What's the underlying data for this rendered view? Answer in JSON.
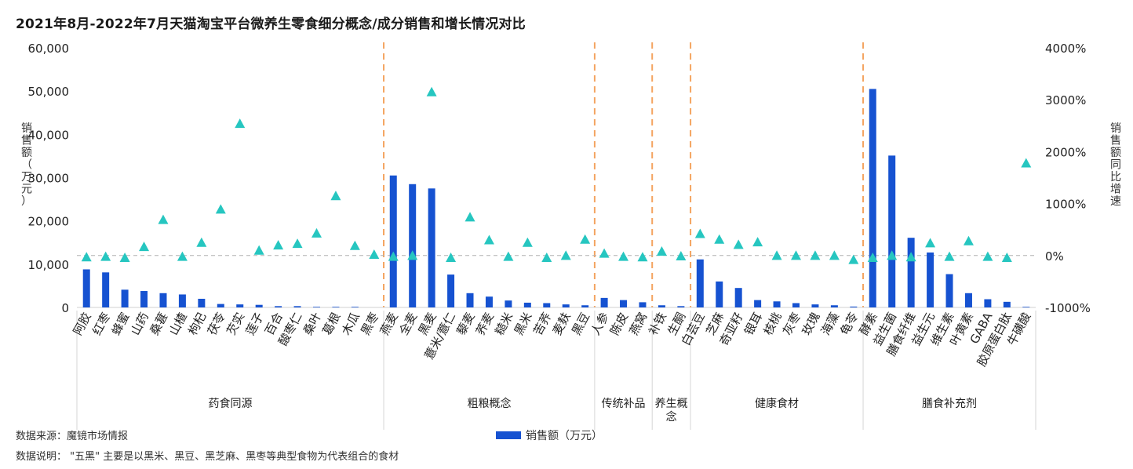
{
  "chart_data": {
    "type": "bar",
    "title": "2021年8月-2022年7月天猫淘宝平台微养生零食细分概念/成分销售和增长情况对比",
    "ylabel": "销售额（万元）",
    "y2label": "销售额同比增速",
    "ylim": [
      0,
      60000
    ],
    "yticks": [
      "0",
      "10,000",
      "20,000",
      "30,000",
      "40,000",
      "50,000",
      "60,000"
    ],
    "y2lim": [
      -1000,
      4000
    ],
    "y2ticks": [
      "-1000%",
      "0%",
      "1000%",
      "2000%",
      "3000%",
      "4000%"
    ],
    "categories": [
      "阿胶",
      "红枣",
      "蜂蜜",
      "山药",
      "桑葚",
      "山楂",
      "枸杞",
      "茯苓",
      "芡实",
      "莲子",
      "百合",
      "酸枣仁",
      "桑叶",
      "葛根",
      "木瓜",
      "黑枣",
      "燕麦",
      "全麦",
      "黑麦",
      "薏米/薏仁",
      "藜麦",
      "荞麦",
      "糙米",
      "黑米",
      "苦荞",
      "麦麸",
      "黑豆",
      "人参",
      "陈皮",
      "燕窝",
      "补铁",
      "生酮",
      "白芸豆",
      "芝麻",
      "奇亚籽",
      "银耳",
      "核桃",
      "灰枣",
      "玫瑰",
      "海藻",
      "龟苓",
      "酵素",
      "益生菌",
      "膳食纤维",
      "益生元",
      "维生素",
      "叶黄素",
      "GABA",
      "胶原蛋白肽",
      "牛磺酸"
    ],
    "series": [
      {
        "name": "销售额（万元）",
        "type": "bar",
        "color": "#1652d1",
        "values": [
          8800,
          8100,
          4100,
          3800,
          3300,
          3000,
          2000,
          800,
          700,
          600,
          300,
          300,
          100,
          100,
          100,
          0,
          30500,
          28500,
          27500,
          7600,
          3300,
          2500,
          1600,
          1100,
          1000,
          700,
          500,
          2200,
          1700,
          1200,
          500,
          300,
          11100,
          6000,
          4500,
          1700,
          1400,
          1000,
          700,
          500,
          200,
          50500,
          35100,
          16100,
          12700,
          7700,
          3300,
          1900,
          1300,
          100
        ]
      },
      {
        "name": "销售额同比增速",
        "type": "scatter",
        "axis": "right",
        "color": "#26c6c0",
        "values": [
          -30,
          -20,
          -40,
          170,
          690,
          -20,
          250,
          890,
          2540,
          100,
          200,
          230,
          430,
          1150,
          190,
          20,
          -20,
          0,
          3150,
          -40,
          740,
          300,
          -20,
          250,
          -40,
          0,
          310,
          40,
          -20,
          -30,
          80,
          -10,
          420,
          310,
          210,
          260,
          0,
          0,
          0,
          0,
          -80,
          -40,
          0,
          -30,
          240,
          -20,
          280,
          -20,
          -40,
          1780
        ]
      }
    ],
    "groups": [
      {
        "label": "药食同源",
        "start": 0,
        "end": 15
      },
      {
        "label": "粗粮概念",
        "start": 16,
        "end": 26
      },
      {
        "label": "传统补品",
        "start": 27,
        "end": 29
      },
      {
        "label": "养生概念",
        "start": 30,
        "end": 31
      },
      {
        "label": "健康食材",
        "start": 32,
        "end": 40
      },
      {
        "label": "膳食补充剂",
        "start": 41,
        "end": 49
      }
    ],
    "zero_reference_line": true,
    "legend": {
      "position": "bottom-center",
      "label": "销售额（万元）"
    }
  },
  "footnotes": {
    "source": "数据来源：魔镜市场情报",
    "note": "数据说明：   \"五黑\" 主要是以黑米、黑豆、黑芝麻、黑枣等典型食物为代表组合的食材"
  },
  "colors": {
    "bar": "#1652d1",
    "marker": "#26c6c0",
    "separator": "#f4a460",
    "zero_line": "#b0b0b0"
  }
}
